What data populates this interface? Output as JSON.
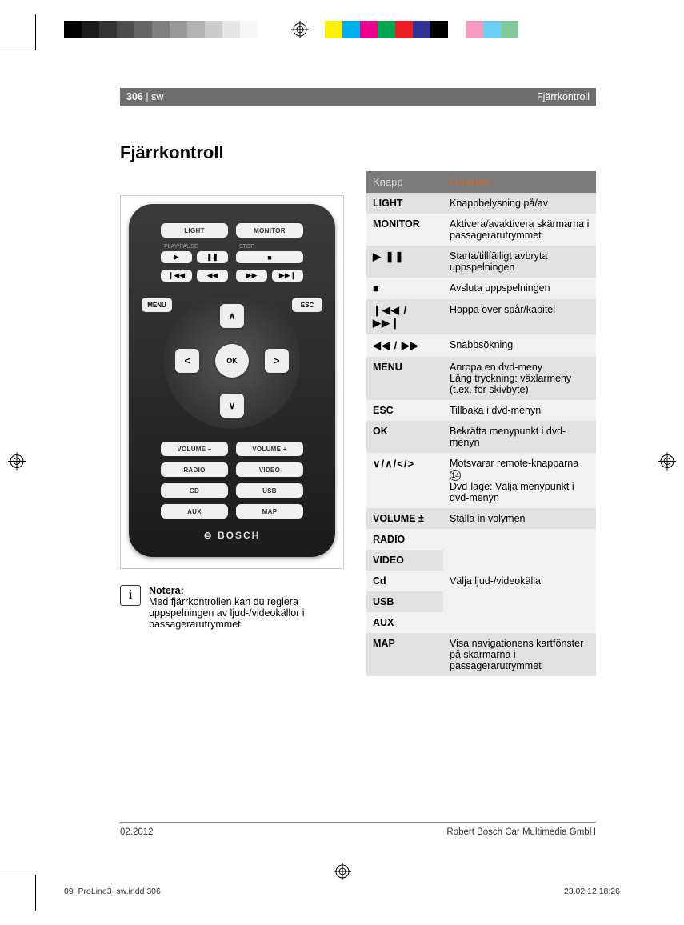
{
  "colorbar": {
    "greys": [
      "#000000",
      "#1a1a1a",
      "#333333",
      "#4d4d4d",
      "#666666",
      "#808080",
      "#999999",
      "#b3b3b3",
      "#cccccc",
      "#e6e6e6",
      "#f7f7f7",
      "#ffffff"
    ],
    "colors": [
      "#fff200",
      "#00aeef",
      "#ec008c",
      "#00a651",
      "#ed1c24",
      "#2e3192",
      "#000000",
      "#ffffff",
      "#f49ac1",
      "#6dcff6",
      "#82ca9c"
    ]
  },
  "header": {
    "page_num": "306",
    "lang": "| sw",
    "section": "Fjärrkontroll"
  },
  "title": "Fjärrkontroll",
  "remote": {
    "light": "LIGHT",
    "monitor": "MONITOR",
    "lbl_playpause": "PLAY/PAUSE",
    "lbl_stop": "STOP",
    "menu": "MENU",
    "esc": "ESC",
    "ok": "OK",
    "up": "∧",
    "down": "∨",
    "left": "<",
    "right": ">",
    "volminus": "VOLUME –",
    "volplus": "VOLUME +",
    "radio": "RADIO",
    "video": "VIDEO",
    "cd": "CD",
    "usb": "USB",
    "aux": "AUX",
    "map": "MAP",
    "brand": "BOSCH"
  },
  "note": {
    "head": "Notera:",
    "body": "Med fjärrkontrollen kan du reglera uppspelningen av ljud-/videokällor i passagerarutrymmet."
  },
  "table": {
    "h1": "Knapp",
    "h2": "Funktion",
    "rows": [
      {
        "k": "LIGHT",
        "v": "Knappbelysning på/av"
      },
      {
        "k": "MONITOR",
        "v": "Aktivera/avaktivera skärmarna i passagerarut­rymmet"
      },
      {
        "sym": "▶   ❚❚",
        "v": "Starta/tillfälligt avbryta uppspelningen"
      },
      {
        "sym": "■",
        "v": "Avsluta uppspelningen"
      },
      {
        "sym": "❙◀◀ / ▶▶❙",
        "v": "Hoppa över spår/kapitel"
      },
      {
        "sym": "◀◀ / ▶▶",
        "v": "Snabbsökning"
      },
      {
        "k": "MENU",
        "v": "Anropa en dvd-meny\nLång tryckning: växlarmeny (t.ex. för skivbyte)"
      },
      {
        "k": "ESC",
        "v": "Tillbaka i dvd-menyn"
      },
      {
        "k": "OK",
        "v": "Bekräfta menypunkt i dvd-menyn"
      },
      {
        "sym": "∨/∧/</>",
        "v": "Motsvarar remote-knap­parna ⑭\nDvd-läge: Välja menypunkt i dvd-menyn",
        "circ": "14"
      },
      {
        "k": "VOLUME ±",
        "v": "Ställa in volymen"
      },
      {
        "k": "RADIO",
        "merged": "Välja ljud-/videokälla"
      },
      {
        "k": "VIDEO"
      },
      {
        "k": "Cd"
      },
      {
        "k": "USB"
      },
      {
        "k": "AUX"
      },
      {
        "k": "MAP",
        "v": "Visa navigationens kartfönster på skärmarna i passagerarutrymmet"
      }
    ]
  },
  "footer": {
    "date": "02.2012",
    "company": "Robert Bosch Car Multimedia GmbH"
  },
  "imprint": {
    "file": "09_ProLine3_sw.indd   306",
    "stamp": "23.02.12   18:26"
  }
}
